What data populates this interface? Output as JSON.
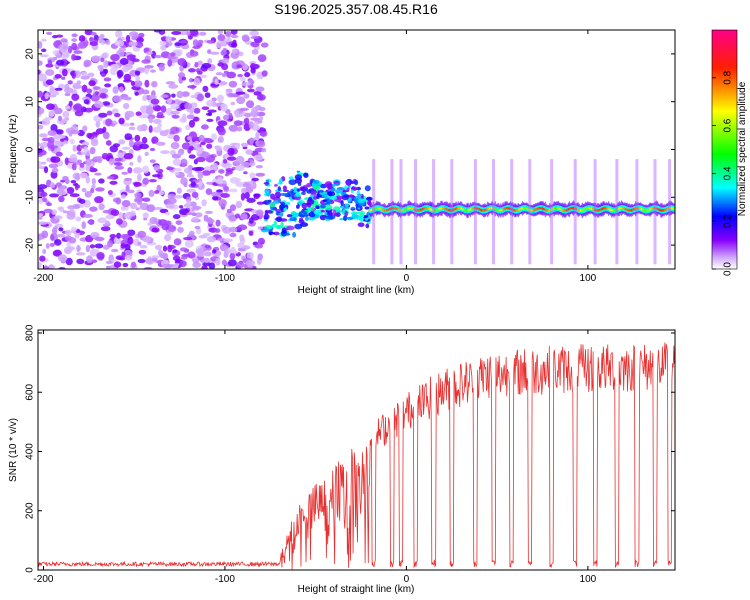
{
  "title": "S196.2025.357.08.45.R16",
  "chart_data": [
    {
      "type": "heatmap",
      "name": "spectrogram",
      "xlabel": "Height of straight line (km)",
      "ylabel": "Frequency (Hz)",
      "xlim": [
        -203,
        148
      ],
      "ylim": [
        -25,
        25
      ],
      "x_ticks": [
        -200,
        -100,
        0,
        100
      ],
      "x_tick_labels": [
        "-200",
        "-100",
        "0",
        "100"
      ],
      "y_ticks": [
        20,
        10,
        0,
        -10,
        -20
      ],
      "y_tick_labels": [
        "20",
        "10",
        "0",
        "-10",
        "-20"
      ],
      "noise_region_x": [
        -203,
        -78
      ],
      "transition_region_x": [
        -78,
        -20
      ],
      "carrier_frequency_hz": -12.5,
      "carrier_x_range": [
        -20,
        148
      ],
      "colorbar": {
        "label": "Normalized spectral amplitude",
        "range": [
          0,
          1
        ],
        "ticks": [
          0.0,
          0.2,
          0.4,
          0.6,
          0.8
        ],
        "tick_labels": [
          "0.0",
          "0.2",
          "0.4",
          "0.6",
          "0.8"
        ],
        "colors": [
          "#ffffff",
          "#8800ff",
          "#0000ff",
          "#00ffff",
          "#00ff00",
          "#ffff00",
          "#ff0000",
          "#ff0088"
        ]
      }
    },
    {
      "type": "line",
      "name": "snr",
      "xlabel": "Height of straight line (km)",
      "ylabel": "SNR (10 * v/v)",
      "xlim": [
        -203,
        148
      ],
      "ylim": [
        0,
        810
      ],
      "x_ticks": [
        -200,
        -100,
        0,
        100
      ],
      "x_tick_labels": [
        "-200",
        "-100",
        "0",
        "100"
      ],
      "y_ticks": [
        0,
        200,
        400,
        600,
        800
      ],
      "y_tick_labels": [
        "0",
        "200",
        "400",
        "600",
        "800"
      ],
      "color": "#e83030",
      "noise_floor": 20,
      "onset_x": -70,
      "envelope": [
        {
          "x": -70,
          "y": 40
        },
        {
          "x": -60,
          "y": 230
        },
        {
          "x": -45,
          "y": 330
        },
        {
          "x": -30,
          "y": 420
        },
        {
          "x": -15,
          "y": 520
        },
        {
          "x": 0,
          "y": 600
        },
        {
          "x": 20,
          "y": 680
        },
        {
          "x": 45,
          "y": 740
        },
        {
          "x": 80,
          "y": 760
        },
        {
          "x": 148,
          "y": 770
        }
      ],
      "dropout_centers": [
        -18,
        -8,
        -3,
        5,
        15,
        25,
        38,
        48,
        58,
        68,
        80,
        93,
        104,
        116,
        127,
        137,
        145
      ]
    }
  ]
}
